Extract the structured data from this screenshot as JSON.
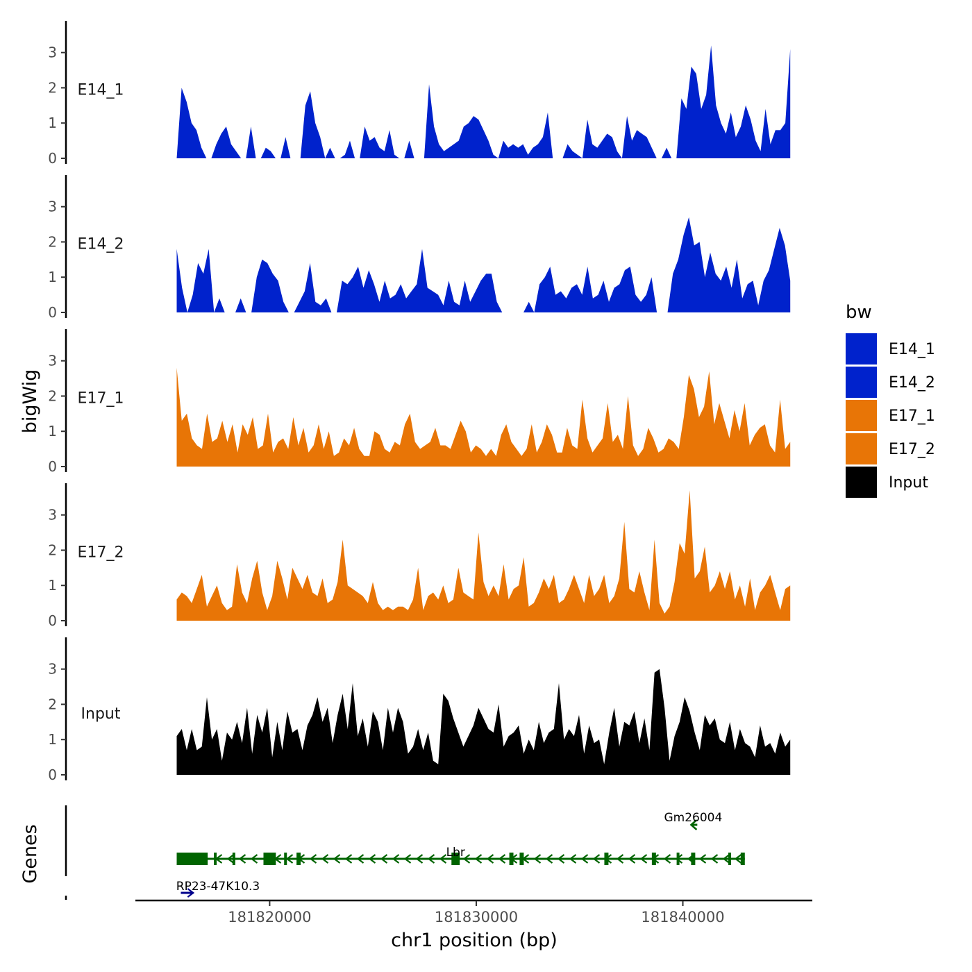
{
  "chart_data": {
    "type": "area",
    "ylabel": "bigWig",
    "xlabel": "chr1 position (bp)",
    "xlim": [
      181813500,
      181846200
    ],
    "data_xrange": [
      181815500,
      181845200
    ],
    "ylim": [
      0,
      3.9
    ],
    "yticks": [
      "0",
      "1",
      "2",
      "3"
    ],
    "xticks": [
      {
        "value": 181820000,
        "label": "181820000"
      },
      {
        "value": 181830000,
        "label": "181830000"
      },
      {
        "value": 181840000,
        "label": "181840000"
      }
    ],
    "legend": {
      "title": "bw",
      "position": "right",
      "entries": [
        {
          "label": "E14_1",
          "color": "#0022cc"
        },
        {
          "label": "E14_2",
          "color": "#0022cc"
        },
        {
          "label": "E17_1",
          "color": "#e87506"
        },
        {
          "label": "E17_2",
          "color": "#e87506"
        },
        {
          "label": "Input",
          "color": "#000000"
        }
      ]
    },
    "series": [
      {
        "name": "E14_1",
        "color": "#0022cc",
        "values": [
          0,
          2.0,
          1.6,
          1.0,
          0.8,
          0.3,
          0,
          0,
          0.4,
          0.7,
          0.9,
          0.4,
          0.2,
          0,
          0,
          0.9,
          0,
          0,
          0.3,
          0.2,
          0,
          0,
          0.6,
          0,
          0,
          0,
          1.5,
          1.9,
          1.0,
          0.6,
          0,
          0.3,
          0,
          0,
          0.1,
          0.5,
          0,
          0,
          0.9,
          0.5,
          0.6,
          0.3,
          0.2,
          0.8,
          0.1,
          0,
          0,
          0.5,
          0,
          0,
          0,
          2.1,
          0.9,
          0.4,
          0.2,
          0.3,
          0.4,
          0.5,
          0.9,
          1.0,
          1.2,
          1.1,
          0.8,
          0.5,
          0.1,
          0,
          0.5,
          0.3,
          0.4,
          0.3,
          0.4,
          0.1,
          0.3,
          0.4,
          0.6,
          1.3,
          0,
          0,
          0,
          0.4,
          0.2,
          0.1,
          0,
          1.1,
          0.4,
          0.3,
          0.5,
          0.7,
          0.6,
          0.2,
          0,
          1.2,
          0.5,
          0.8,
          0.7,
          0.6,
          0.3,
          0,
          0,
          0.3,
          0,
          0,
          1.7,
          1.4,
          2.6,
          2.4,
          1.4,
          1.8,
          3.2,
          1.5,
          1.0,
          0.7,
          1.3,
          0.6,
          0.9,
          1.5,
          1.1,
          0.5,
          0.2,
          1.4,
          0.4,
          0.8,
          0.8,
          1.0,
          3.1
        ]
      },
      {
        "name": "E14_2",
        "color": "#0022cc",
        "values": [
          1.8,
          0.7,
          0,
          0.5,
          1.4,
          1.1,
          1.8,
          0,
          0.4,
          0,
          0,
          0,
          0.4,
          0,
          0,
          1.0,
          1.5,
          1.4,
          1.1,
          0.9,
          0.3,
          0,
          0,
          0.3,
          0.6,
          1.4,
          0.3,
          0.2,
          0.4,
          0,
          0,
          0.9,
          0.8,
          1.0,
          1.3,
          0.7,
          1.2,
          0.8,
          0.3,
          0.9,
          0.4,
          0.5,
          0.8,
          0.4,
          0.6,
          0.8,
          1.8,
          0.7,
          0.6,
          0.5,
          0.2,
          0.9,
          0.3,
          0.2,
          0.9,
          0.3,
          0.6,
          0.9,
          1.1,
          1.1,
          0.3,
          0,
          0,
          0,
          0,
          0,
          0.3,
          0,
          0.8,
          1.0,
          1.3,
          0.5,
          0.6,
          0.4,
          0.7,
          0.8,
          0.5,
          1.3,
          0.4,
          0.5,
          0.9,
          0.3,
          0.7,
          0.8,
          1.2,
          1.3,
          0.5,
          0.3,
          0.5,
          1.0,
          0,
          0,
          0,
          1.1,
          1.5,
          2.2,
          2.7,
          1.9,
          2.0,
          1.0,
          1.7,
          1.1,
          0.9,
          1.3,
          0.7,
          1.5,
          0.4,
          0.8,
          0.9,
          0.2,
          0.9,
          1.2,
          1.8,
          2.4,
          1.9,
          0.9
        ]
      },
      {
        "name": "E17_1",
        "color": "#e87506",
        "values": [
          2.8,
          1.3,
          1.5,
          0.8,
          0.6,
          0.5,
          1.5,
          0.7,
          0.8,
          1.3,
          0.7,
          1.2,
          0.4,
          1.2,
          0.9,
          1.4,
          0.5,
          0.6,
          1.5,
          0.4,
          0.7,
          0.8,
          0.5,
          1.4,
          0.6,
          1.1,
          0.4,
          0.6,
          1.2,
          0.5,
          1.0,
          0.3,
          0.4,
          0.8,
          0.6,
          1.1,
          0.5,
          0.3,
          0.3,
          1.0,
          0.9,
          0.5,
          0.4,
          0.7,
          0.6,
          1.2,
          1.5,
          0.7,
          0.5,
          0.6,
          0.7,
          1.1,
          0.6,
          0.6,
          0.5,
          0.9,
          1.3,
          1.0,
          0.4,
          0.6,
          0.5,
          0.3,
          0.5,
          0.3,
          0.9,
          1.2,
          0.7,
          0.5,
          0.3,
          0.5,
          1.2,
          0.4,
          0.7,
          1.2,
          0.9,
          0.4,
          0.4,
          1.1,
          0.6,
          0.5,
          1.9,
          0.8,
          0.4,
          0.6,
          0.8,
          1.8,
          0.7,
          0.9,
          0.5,
          2.0,
          0.6,
          0.3,
          0.5,
          1.1,
          0.8,
          0.4,
          0.5,
          0.8,
          0.7,
          0.5,
          1.4,
          2.6,
          2.2,
          1.4,
          1.7,
          2.7,
          1.2,
          1.8,
          1.3,
          0.8,
          1.6,
          1.0,
          1.8,
          0.6,
          0.9,
          1.1,
          1.2,
          0.6,
          0.4,
          1.9,
          0.5,
          0.7
        ]
      },
      {
        "name": "E17_2",
        "color": "#e87506",
        "values": [
          0.6,
          0.8,
          0.7,
          0.5,
          0.9,
          1.3,
          0.4,
          0.7,
          1.0,
          0.5,
          0.3,
          0.4,
          1.6,
          0.8,
          0.5,
          1.2,
          1.7,
          0.8,
          0.3,
          0.7,
          1.7,
          1.2,
          0.6,
          1.5,
          1.2,
          0.9,
          1.3,
          0.8,
          0.7,
          1.2,
          0.5,
          0.6,
          1.1,
          2.3,
          1.0,
          0.9,
          0.8,
          0.7,
          0.5,
          1.1,
          0.5,
          0.3,
          0.4,
          0.3,
          0.4,
          0.4,
          0.3,
          0.6,
          1.5,
          0.3,
          0.7,
          0.8,
          0.6,
          1.0,
          0.5,
          0.6,
          1.5,
          0.8,
          0.7,
          0.6,
          2.5,
          1.1,
          0.7,
          1.0,
          0.7,
          1.6,
          0.6,
          0.9,
          1.0,
          1.8,
          0.4,
          0.5,
          0.8,
          1.2,
          0.9,
          1.3,
          0.5,
          0.6,
          0.9,
          1.3,
          0.9,
          0.5,
          1.3,
          0.7,
          0.9,
          1.3,
          0.5,
          0.7,
          1.2,
          2.8,
          0.9,
          0.8,
          1.4,
          0.8,
          0.3,
          2.3,
          0.5,
          0.2,
          0.4,
          1.1,
          2.2,
          1.9,
          3.7,
          1.2,
          1.4,
          2.1,
          0.8,
          1.0,
          1.4,
          0.9,
          1.4,
          0.6,
          1.0,
          0.4,
          1.2,
          0.3,
          0.8,
          1.0,
          1.3,
          0.8,
          0.3,
          0.9,
          1.0
        ]
      },
      {
        "name": "Input",
        "color": "#000000",
        "values": [
          1.1,
          1.3,
          0.7,
          1.3,
          0.7,
          0.8,
          2.2,
          1.0,
          1.3,
          0.4,
          1.2,
          1.0,
          1.5,
          0.9,
          1.9,
          0.6,
          1.7,
          1.2,
          1.9,
          0.5,
          1.5,
          0.7,
          1.8,
          1.2,
          1.3,
          0.7,
          1.4,
          1.7,
          2.2,
          1.5,
          1.9,
          0.9,
          1.7,
          2.3,
          1.3,
          2.6,
          1.1,
          1.6,
          0.8,
          1.8,
          1.5,
          0.7,
          1.9,
          1.2,
          1.9,
          1.5,
          0.6,
          0.8,
          1.3,
          0.7,
          1.2,
          0.4,
          0.3,
          2.3,
          2.1,
          1.6,
          1.2,
          0.8,
          1.1,
          1.4,
          1.9,
          1.6,
          1.3,
          1.2,
          2.0,
          0.8,
          1.1,
          1.2,
          1.4,
          0.6,
          1.0,
          0.7,
          1.5,
          0.9,
          1.2,
          1.3,
          2.6,
          1.0,
          1.3,
          1.1,
          1.7,
          0.6,
          1.4,
          0.9,
          1.0,
          0.3,
          1.2,
          1.9,
          0.8,
          1.5,
          1.4,
          1.8,
          0.9,
          1.6,
          0.7,
          2.9,
          3.0,
          1.9,
          0.4,
          1.1,
          1.5,
          2.2,
          1.8,
          1.2,
          0.7,
          1.7,
          1.4,
          1.6,
          1.0,
          0.9,
          1.5,
          0.7,
          1.3,
          0.9,
          0.8,
          0.5,
          1.4,
          0.8,
          0.9,
          0.6,
          1.2,
          0.8,
          1.0
        ]
      }
    ],
    "genes": [
      {
        "label": "Gm26004",
        "strand": "-",
        "color": "#006400",
        "start": 181840400,
        "end": 181840700,
        "row": 0
      },
      {
        "label": "Lbr",
        "strand": "-",
        "color": "#006400",
        "start": 181815500,
        "end": 181843000,
        "row": 1,
        "exons": [
          [
            181815500,
            181817000
          ],
          [
            181817300,
            181817400
          ],
          [
            181818200,
            181818300
          ],
          [
            181819700,
            181820300
          ],
          [
            181820700,
            181820800
          ],
          [
            181821300,
            181821500
          ],
          [
            181828800,
            181829200
          ],
          [
            181831600,
            181831800
          ],
          [
            181832100,
            181832300
          ],
          [
            181836200,
            181836400
          ],
          [
            181838500,
            181838700
          ],
          [
            181839700,
            181839800
          ],
          [
            181840400,
            181840600
          ],
          [
            181842200,
            181842300
          ],
          [
            181842800,
            181843000
          ]
        ]
      },
      {
        "label": "RP23-47K10.3",
        "strand": "+",
        "color": "#00008b",
        "start": 181815700,
        "end": 181816300,
        "row": 2
      }
    ],
    "genes_label": "Genes"
  }
}
